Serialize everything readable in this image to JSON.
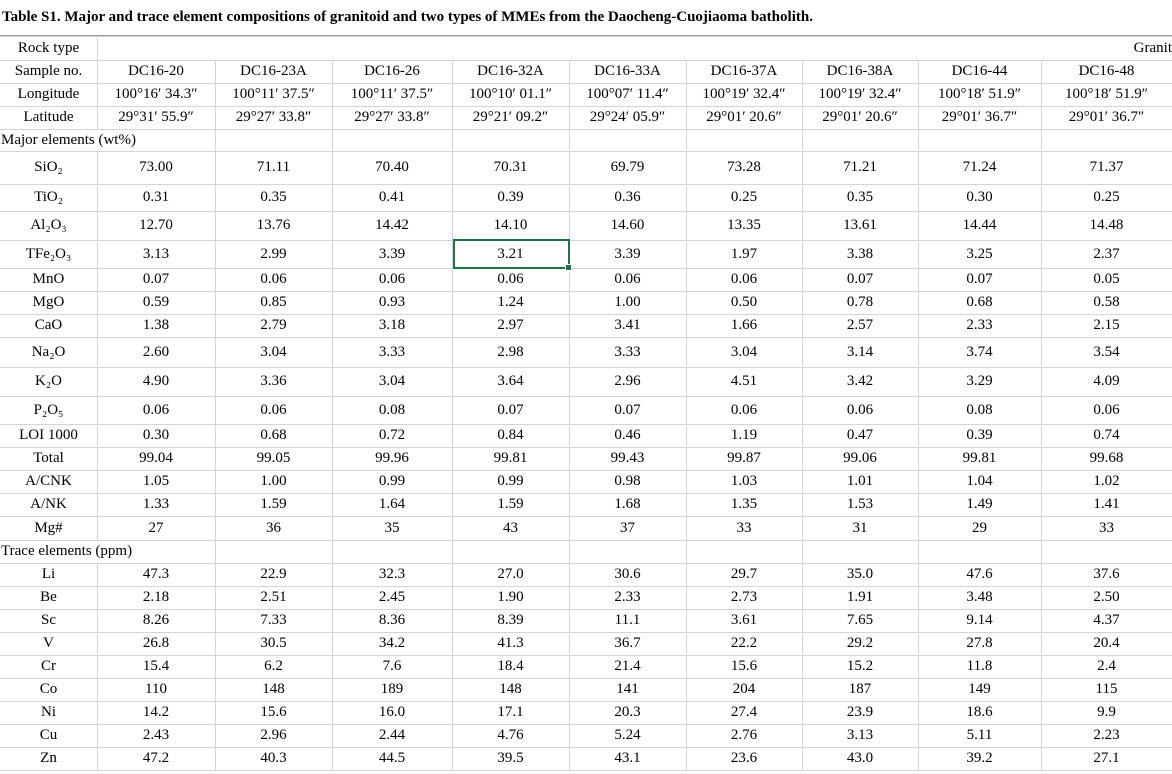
{
  "title": "Table S1. Major and trace element compositions of granitoid and two types of MMEs from the Daocheng-Cuojiaoma batholith.",
  "table": {
    "rows": [
      [
        "Rock type",
        "Granit"
      ],
      [
        "Sample no.",
        "DC16-20",
        "DC16-23A",
        "DC16-26",
        "DC16-32A",
        "DC16-33A",
        "DC16-37A",
        "DC16-38A",
        "DC16-44",
        "DC16-48"
      ],
      [
        "Longitude",
        "100°16′ 34.3″",
        "100°11′ 37.5″",
        "100°11′ 37.5″",
        "100°10′ 01.1″",
        "100°07′ 11.4″",
        "100°19′ 32.4″",
        "100°19′ 32.4″",
        "100°18′ 51.9″",
        "100°18′ 51.9″"
      ],
      [
        "Latitude",
        "29°31′ 55.9″",
        "29°27′ 33.8″",
        "29°27′ 33.8″",
        "29°21′ 09.2″",
        "29°24′ 05.9″",
        "29°01′ 20.6″",
        "29°01′ 20.6″",
        "29°01′ 36.7″",
        "29°01′ 36.7″"
      ],
      [
        "Major elements (wt%)"
      ],
      [
        "SiO₂",
        "73.00",
        "71.11",
        "70.40",
        "70.31",
        "69.79",
        "73.28",
        "71.21",
        "71.24",
        "71.37"
      ],
      [
        "TiO₂",
        "0.31",
        "0.35",
        "0.41",
        "0.39",
        "0.36",
        "0.25",
        "0.35",
        "0.30",
        "0.25"
      ],
      [
        "Al₂O₃",
        "12.70",
        "13.76",
        "14.42",
        "14.10",
        "14.60",
        "13.35",
        "13.61",
        "14.44",
        "14.48"
      ],
      [
        "TFe₂O₃",
        "3.13",
        "2.99",
        "3.39",
        "3.21",
        "3.39",
        "1.97",
        "3.38",
        "3.25",
        "2.37"
      ],
      [
        "MnO",
        "0.07",
        "0.06",
        "0.06",
        "0.06",
        "0.06",
        "0.06",
        "0.07",
        "0.07",
        "0.05"
      ],
      [
        "MgO",
        "0.59",
        "0.85",
        "0.93",
        "1.24",
        "1.00",
        "0.50",
        "0.78",
        "0.68",
        "0.58"
      ],
      [
        "CaO",
        "1.38",
        "2.79",
        "3.18",
        "2.97",
        "3.41",
        "1.66",
        "2.57",
        "2.33",
        "2.15"
      ],
      [
        "Na₂O",
        "2.60",
        "3.04",
        "3.33",
        "2.98",
        "3.33",
        "3.04",
        "3.14",
        "3.74",
        "3.54"
      ],
      [
        "K₂O",
        "4.90",
        "3.36",
        "3.04",
        "3.64",
        "2.96",
        "4.51",
        "3.42",
        "3.29",
        "4.09"
      ],
      [
        "P₂O₅",
        "0.06",
        "0.06",
        "0.08",
        "0.07",
        "0.07",
        "0.06",
        "0.06",
        "0.08",
        "0.06"
      ],
      [
        "LOI 1000",
        "0.30",
        "0.68",
        "0.72",
        "0.84",
        "0.46",
        "1.19",
        "0.47",
        "0.39",
        "0.74"
      ],
      [
        "Total",
        "99.04",
        "99.05",
        "99.96",
        "99.81",
        "99.43",
        "99.87",
        "99.06",
        "99.81",
        "99.68"
      ],
      [
        "A/CNK",
        "1.05",
        "1.00",
        "0.99",
        "0.99",
        "0.98",
        "1.03",
        "1.01",
        "1.04",
        "1.02"
      ],
      [
        "A/NK",
        "1.33",
        "1.59",
        "1.64",
        "1.59",
        "1.68",
        "1.35",
        "1.53",
        "1.49",
        "1.41"
      ],
      [
        "Mg#",
        "27",
        "36",
        "35",
        "43",
        "37",
        "33",
        "31",
        "29",
        "33"
      ],
      [
        "Trace elements (ppm)"
      ],
      [
        "Li",
        "47.3",
        "22.9",
        "32.3",
        "27.0",
        "30.6",
        "29.7",
        "35.0",
        "47.6",
        "37.6"
      ],
      [
        "Be",
        "2.18",
        "2.51",
        "2.45",
        "1.90",
        "2.33",
        "2.73",
        "1.91",
        "3.48",
        "2.50"
      ],
      [
        "Sc",
        "8.26",
        "7.33",
        "8.36",
        "8.39",
        "11.1",
        "3.61",
        "7.65",
        "9.14",
        "4.37"
      ],
      [
        "V",
        "26.8",
        "30.5",
        "34.2",
        "41.3",
        "36.7",
        "22.2",
        "29.2",
        "27.8",
        "20.4"
      ],
      [
        "Cr",
        "15.4",
        "6.2",
        "7.6",
        "18.4",
        "21.4",
        "15.6",
        "15.2",
        "11.8",
        "2.4"
      ],
      [
        "Co",
        "110",
        "148",
        "189",
        "148",
        "141",
        "204",
        "187",
        "149",
        "115"
      ],
      [
        "Ni",
        "14.2",
        "15.6",
        "16.0",
        "17.1",
        "20.3",
        "27.4",
        "23.9",
        "18.6",
        "9.9"
      ],
      [
        "Cu",
        "2.43",
        "2.96",
        "2.44",
        "4.76",
        "5.24",
        "2.76",
        "3.13",
        "5.11",
        "2.23"
      ],
      [
        "Zn",
        "47.2",
        "40.3",
        "44.5",
        "39.5",
        "43.1",
        "23.6",
        "43.0",
        "39.2",
        "27.1"
      ]
    ]
  }
}
